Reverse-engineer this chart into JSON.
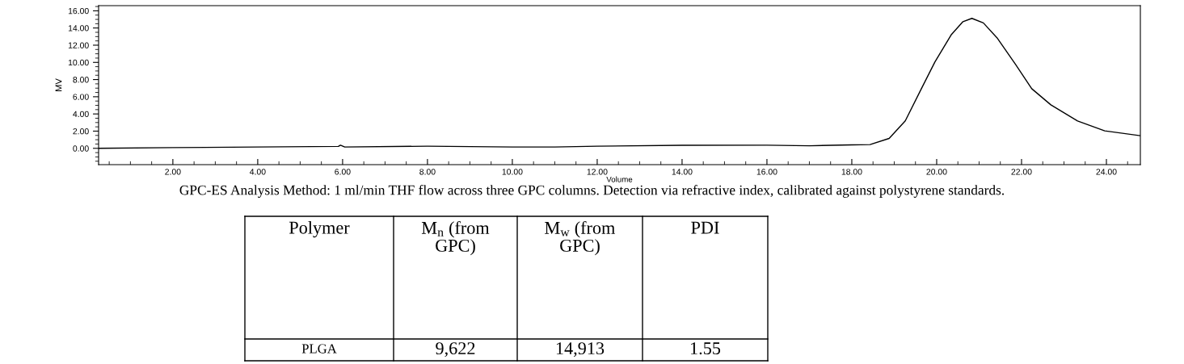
{
  "chart_data": {
    "type": "line",
    "xlabel": "Volume",
    "ylabel": "MV",
    "x": [
      0.25,
      2.0,
      4.0,
      5.9,
      5.95,
      6.05,
      8.0,
      10.0,
      11.0,
      12.0,
      14.0,
      16.0,
      17.0,
      18.0,
      18.43,
      18.88,
      19.26,
      19.64,
      19.96,
      20.34,
      20.62,
      20.83,
      21.1,
      21.42,
      21.86,
      22.24,
      22.69,
      23.32,
      23.96,
      24.8
    ],
    "series": [
      {
        "color": "#000000",
        "values": [
          0.0,
          0.08,
          0.15,
          0.22,
          0.37,
          0.15,
          0.25,
          0.15,
          0.15,
          0.25,
          0.35,
          0.37,
          0.3,
          0.4,
          0.44,
          1.15,
          3.19,
          6.94,
          10.06,
          13.19,
          14.74,
          15.12,
          14.59,
          12.87,
          9.75,
          6.94,
          5.06,
          3.19,
          2.03,
          1.47
        ]
      }
    ],
    "xlim": [
      0.25,
      24.8
    ],
    "ylim": [
      -1.9,
      16.6
    ],
    "xticks": [
      {
        "value": 2,
        "label": "2.00"
      },
      {
        "value": 4,
        "label": "4.00"
      },
      {
        "value": 6,
        "label": "6.00"
      },
      {
        "value": 8,
        "label": "8.00"
      },
      {
        "value": 10,
        "label": "10.00"
      },
      {
        "value": 12,
        "label": "12.00"
      },
      {
        "value": 14,
        "label": "14.00"
      },
      {
        "value": 16,
        "label": "16.00"
      },
      {
        "value": 18,
        "label": "18.00"
      },
      {
        "value": 20,
        "label": "20.00"
      },
      {
        "value": 22,
        "label": "22.00"
      },
      {
        "value": 24,
        "label": "24.00"
      }
    ],
    "yticks": [
      {
        "value": 0,
        "label": "0.00"
      },
      {
        "value": 2,
        "label": "2.00"
      },
      {
        "value": 4,
        "label": "4.00"
      },
      {
        "value": 6,
        "label": "6.00"
      },
      {
        "value": 8,
        "label": "8.00"
      },
      {
        "value": 10,
        "label": "10.00"
      },
      {
        "value": 12,
        "label": "12.00"
      },
      {
        "value": 14,
        "label": "14.00"
      },
      {
        "value": 16,
        "label": "16.00"
      }
    ],
    "grid": false,
    "legend": false,
    "marker": "none",
    "line_style": "solid",
    "annotations": [
      "GPC-ES Analysis Method: 1 ml/min THF flow across three GPC columns. Detection via refractive index, calibrated against polystyrene standards.",
      "Polymer",
      "M$_{n}$ (from GPC)",
      "M$_{w}$ (from GPC)",
      "PDI",
      "PLGA",
      "9,622",
      "14,913",
      "1.55"
    ]
  }
}
